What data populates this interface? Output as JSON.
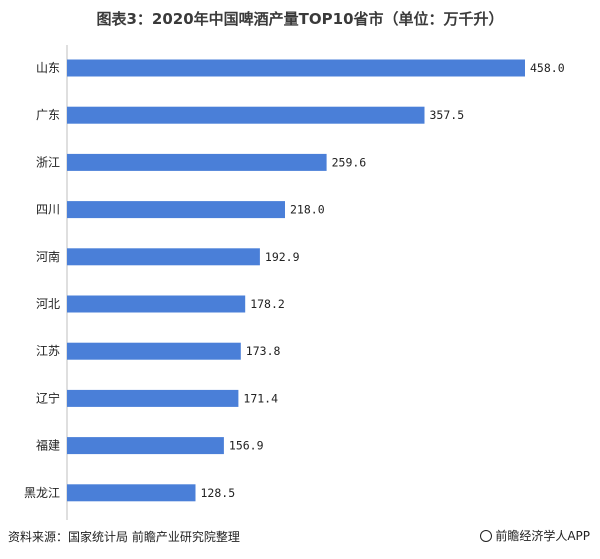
{
  "chart_data": {
    "type": "bar",
    "orientation": "horizontal",
    "title": "图表3：2020年中国啤酒产量TOP10省市（单位：万千升）",
    "categories": [
      "山东",
      "广东",
      "浙江",
      "四川",
      "河南",
      "河北",
      "江苏",
      "辽宁",
      "福建",
      "黑龙江"
    ],
    "values": [
      458.0,
      357.5,
      259.6,
      218.0,
      192.9,
      178.2,
      173.8,
      171.4,
      156.9,
      128.5
    ],
    "value_labels": [
      "458.0",
      "357.5",
      "259.6",
      "218.0",
      "192.9",
      "178.2",
      "173.8",
      "171.4",
      "156.9",
      "128.5"
    ],
    "xlim": [
      0,
      480
    ],
    "grid": false,
    "bar_color": "#4a7fd8"
  },
  "footer": {
    "source": "资料来源：国家统计局 前瞻产业研究院整理",
    "brand": "前瞻经济学人APP"
  }
}
